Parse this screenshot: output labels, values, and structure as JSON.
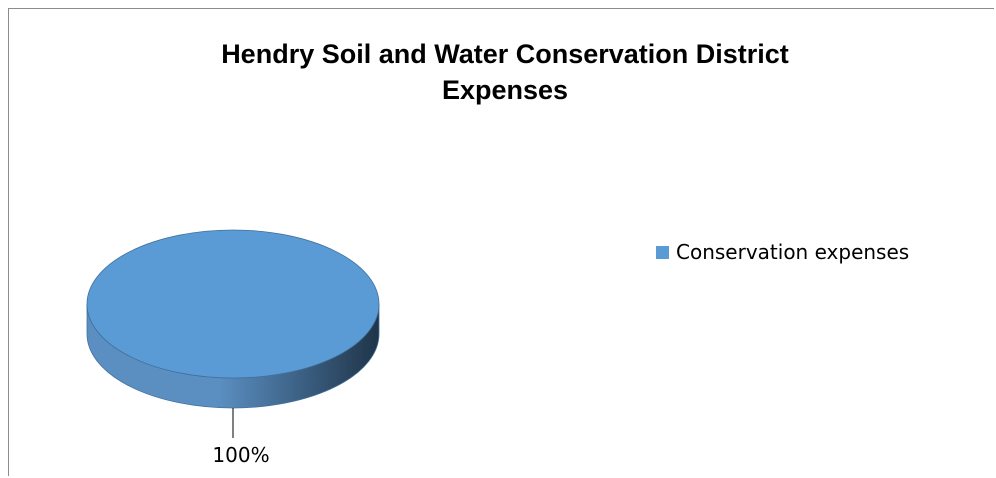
{
  "chart_data": {
    "type": "pie",
    "title": "Hendry Soil and Water Conservation District\nExpenses",
    "categories": [
      "Conservation expenses"
    ],
    "values": [
      100
    ],
    "data_labels": [
      "100%"
    ],
    "legend_position": "right",
    "style": "3d",
    "colors": {
      "slice_top": "#5b9bd5",
      "slice_side_light": "#5b8fc2",
      "slice_side_dark": "#1f3448",
      "slice_edge": "#41719c",
      "leader_line": "#000000"
    }
  }
}
